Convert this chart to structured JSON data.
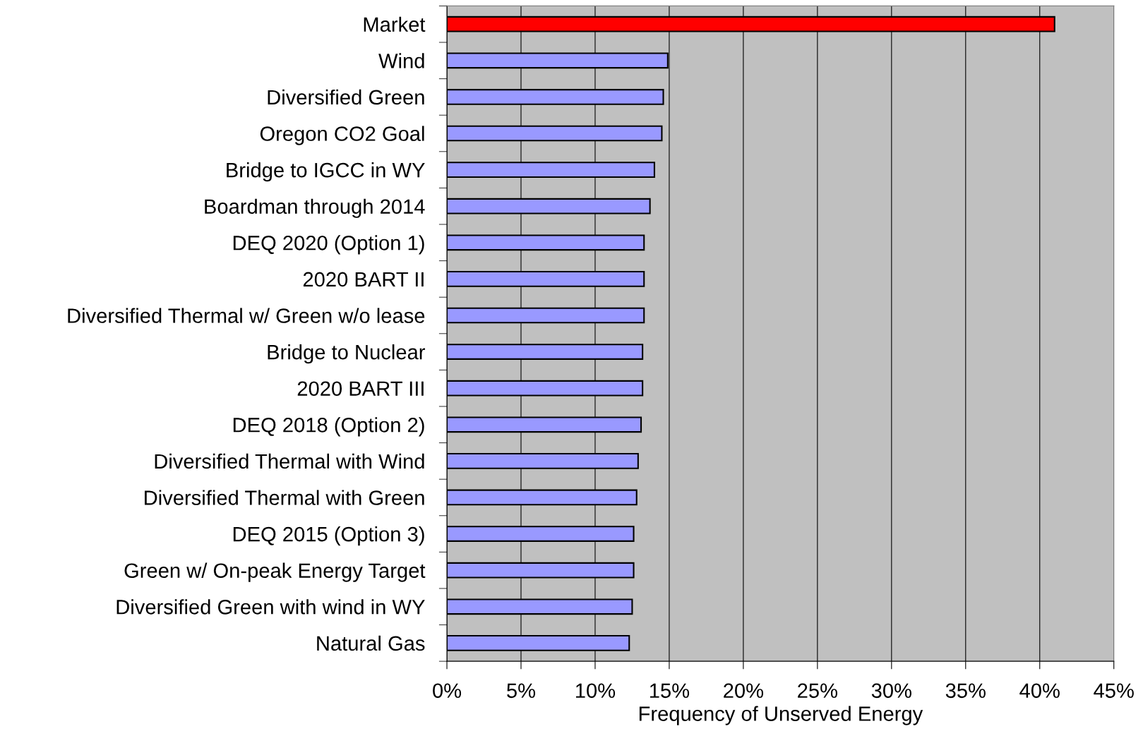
{
  "chart_data": {
    "type": "bar",
    "orientation": "horizontal",
    "xlabel": "Frequency of Unserved Energy",
    "categories": [
      "Market",
      "Wind",
      "Diversified Green",
      "Oregon CO2 Goal",
      "Bridge to IGCC in WY",
      "Boardman through 2014",
      "DEQ 2020 (Option 1)",
      "2020 BART II",
      "Diversified Thermal w/ Green w/o lease",
      "Bridge to Nuclear",
      "2020 BART III",
      "DEQ 2018 (Option 2)",
      "Diversified Thermal with Wind",
      "Diversified Thermal with Green",
      "DEQ 2015 (Option 3)",
      "Green w/ On-peak Energy Target",
      "Diversified Green with wind in WY",
      "Natural Gas"
    ],
    "values": [
      41.0,
      14.9,
      14.6,
      14.5,
      14.0,
      13.7,
      13.3,
      13.3,
      13.3,
      13.2,
      13.2,
      13.1,
      12.9,
      12.8,
      12.6,
      12.6,
      12.5,
      12.3
    ],
    "colors": [
      "#ff0000",
      "#9999ff",
      "#9999ff",
      "#9999ff",
      "#9999ff",
      "#9999ff",
      "#9999ff",
      "#9999ff",
      "#9999ff",
      "#9999ff",
      "#9999ff",
      "#9999ff",
      "#9999ff",
      "#9999ff",
      "#9999ff",
      "#9999ff",
      "#9999ff",
      "#9999ff"
    ],
    "xlim": [
      0,
      45
    ],
    "xticks": [
      {
        "value": 0,
        "label": "0%"
      },
      {
        "value": 5,
        "label": "5%"
      },
      {
        "value": 10,
        "label": "10%"
      },
      {
        "value": 15,
        "label": "15%"
      },
      {
        "value": 20,
        "label": "20%"
      },
      {
        "value": 25,
        "label": "25%"
      },
      {
        "value": 30,
        "label": "30%"
      },
      {
        "value": 35,
        "label": "35%"
      },
      {
        "value": 40,
        "label": "40%"
      },
      {
        "value": 45,
        "label": "45%"
      }
    ],
    "grid": "x"
  }
}
